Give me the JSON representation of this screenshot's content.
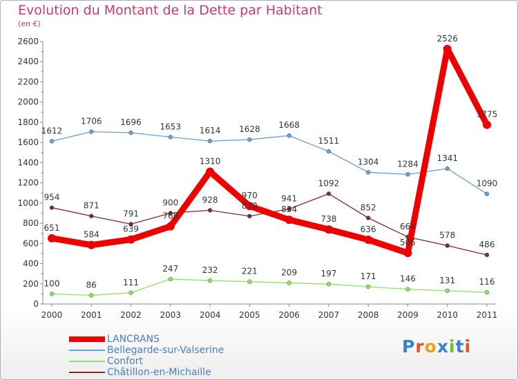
{
  "title": "Evolution du Montant de la Dette par Habitant",
  "subtitle": "(en €)",
  "logo": {
    "text": "Proxiti",
    "letters": [
      "P",
      "r",
      "o",
      "x",
      "i",
      "t",
      "i"
    ],
    "letter_colors": [
      "#3a7fd0",
      "#e8512c",
      "#f0a020",
      "#3a7fd0",
      "#6cbf30",
      "#3a7fd0",
      "#e8512c"
    ]
  },
  "chart_data": {
    "type": "line",
    "title": "Evolution du Montant de la Dette par Habitant",
    "subtitle": "(en €)",
    "xlabel": "",
    "ylabel": "",
    "x": [
      "2000",
      "2001",
      "2002",
      "2003",
      "2004",
      "2005",
      "2006",
      "2007",
      "2008",
      "2009",
      "2010",
      "2011"
    ],
    "ylim": [
      0,
      2600
    ],
    "yticks": [
      0,
      200,
      400,
      600,
      800,
      1000,
      1200,
      1400,
      1600,
      1800,
      2000,
      2200,
      2400,
      2600
    ],
    "grid": false,
    "legend_position": "bottom-left",
    "series": [
      {
        "name": "Châtillon-en-Michaille",
        "color": "#7a2c34",
        "values": [
          954,
          871,
          791,
          900,
          928,
          870,
          941,
          1092,
          852,
          664,
          578,
          486
        ],
        "labels": [
          "954",
          "871",
          "791",
          "900",
          "928",
          "870",
          "941",
          "1092",
          "852",
          "664",
          "578",
          "486"
        ]
      },
      {
        "name": "Confort",
        "color": "#90e060",
        "values": [
          100,
          86,
          111,
          247,
          232,
          221,
          209,
          197,
          171,
          146,
          131,
          116
        ],
        "labels": [
          "100",
          "86",
          "111",
          "247",
          "232",
          "221",
          "209",
          "197",
          "171",
          "146",
          "131",
          "116"
        ]
      },
      {
        "name": "Bellegarde-sur-Valserine",
        "color": "#6a9ed2",
        "values": [
          1612,
          1706,
          1696,
          1653,
          1614,
          1628,
          1668,
          1511,
          1304,
          1284,
          1341,
          1090
        ],
        "labels": [
          "1612",
          "1706",
          "1696",
          "1653",
          "1614",
          "1628",
          "1668",
          "1511",
          "1304",
          "1284",
          "1341",
          "1090"
        ]
      },
      {
        "name": "LANCRANS",
        "color": "#ee0000",
        "values": [
          651,
          584,
          639,
          769,
          1310,
          970,
          834,
          738,
          636,
          505,
          2526,
          1775
        ],
        "labels": [
          "651",
          "584",
          "639",
          "769",
          "1310",
          "970",
          "834",
          "738",
          "636",
          "505",
          "2526",
          "1775"
        ]
      }
    ]
  },
  "legend": [
    {
      "label": "LANCRANS",
      "color": "#ee0000"
    },
    {
      "label": "Bellegarde-sur-Valserine",
      "color": "#6a9ed2"
    },
    {
      "label": "Confort",
      "color": "#90e060"
    },
    {
      "label": "Châtillon-en-Michaille",
      "color": "#7a2c34"
    }
  ]
}
